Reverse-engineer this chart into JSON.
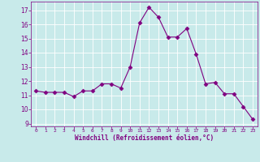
{
  "x": [
    0,
    1,
    2,
    3,
    4,
    5,
    6,
    7,
    8,
    9,
    10,
    11,
    12,
    13,
    14,
    15,
    16,
    17,
    18,
    19,
    20,
    21,
    22,
    23
  ],
  "y": [
    11.3,
    11.2,
    11.2,
    11.2,
    10.9,
    11.3,
    11.3,
    11.8,
    11.8,
    11.5,
    13.0,
    16.1,
    17.2,
    16.5,
    15.1,
    15.1,
    15.7,
    13.9,
    11.8,
    11.9,
    11.1,
    11.1,
    10.2,
    9.3
  ],
  "line_color": "#800080",
  "marker": "D",
  "marker_size": 2.5,
  "bg_color": "#c8eaea",
  "grid_color": "#ffffff",
  "xlabel": "Windchill (Refroidissement éolien,°C)",
  "xlabel_color": "#800080",
  "tick_color": "#800080",
  "ylim": [
    8.8,
    17.6
  ],
  "xlim": [
    -0.5,
    23.5
  ],
  "yticks": [
    9,
    10,
    11,
    12,
    13,
    14,
    15,
    16,
    17
  ],
  "xticks": [
    0,
    1,
    2,
    3,
    4,
    5,
    6,
    7,
    8,
    9,
    10,
    11,
    12,
    13,
    14,
    15,
    16,
    17,
    18,
    19,
    20,
    21,
    22,
    23
  ],
  "xtick_labels": [
    "0",
    "1",
    "2",
    "3",
    "4",
    "5",
    "6",
    "7",
    "8",
    "9",
    "10",
    "11",
    "12",
    "13",
    "14",
    "15",
    "16",
    "17",
    "18",
    "19",
    "20",
    "21",
    "22",
    "23"
  ],
  "figsize": [
    3.2,
    2.0
  ],
  "dpi": 100
}
